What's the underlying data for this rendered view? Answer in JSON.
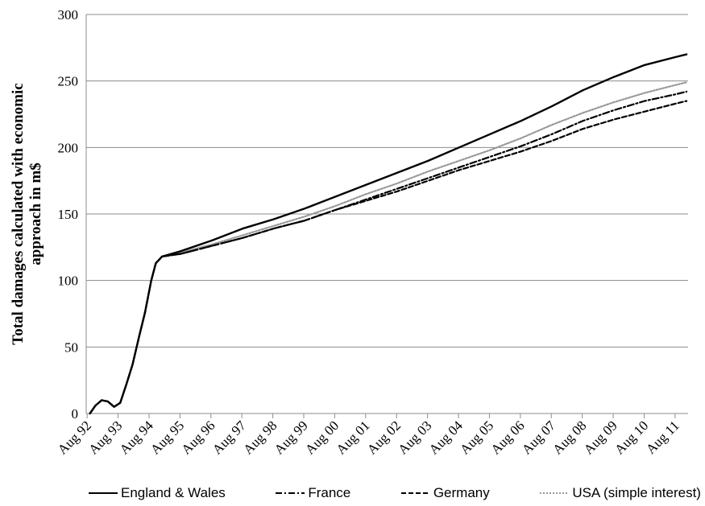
{
  "chart_data": {
    "type": "line",
    "title": "",
    "xlabel": "",
    "ylabel_lines": [
      "Total damages calculated with economic",
      "approach in m$"
    ],
    "x_ticks": [
      "Aug 92",
      "Aug 93",
      "Aug 94",
      "Aug 95",
      "Aug 96",
      "Aug 97",
      "Aug 98",
      "Aug 99",
      "Aug 00",
      "Aug 01",
      "Aug 02",
      "Aug 03",
      "Aug 04",
      "Aug 05",
      "Aug 06",
      "Aug 07",
      "Aug 08",
      "Aug 09",
      "Aug 10",
      "Aug 11"
    ],
    "xlim": [
      1992.55,
      2012.0
    ],
    "ylim": [
      0,
      300
    ],
    "y_ticks": [
      0,
      50,
      100,
      150,
      200,
      250,
      300
    ],
    "grid": "horizontal",
    "legend_position": "bottom",
    "series": [
      {
        "name": "England & Wales",
        "style": "solid",
        "color": "#000000",
        "x": [
          1992.67,
          1992.85,
          1993.05,
          1993.25,
          1993.45,
          1993.65,
          1993.85,
          1994.05,
          1994.25,
          1994.45,
          1994.65,
          1994.8,
          1995.0,
          1995.6,
          1996.6,
          1997.6,
          1998.6,
          1999.6,
          2000.6,
          2001.6,
          2002.6,
          2003.6,
          2004.6,
          2005.6,
          2006.6,
          2007.6,
          2008.6,
          2009.6,
          2010.6,
          2011.6,
          2011.95
        ],
        "y": [
          0,
          6,
          10,
          9,
          5,
          8,
          22,
          37,
          57,
          76,
          100,
          113,
          118,
          122,
          130,
          139,
          146,
          154,
          163,
          172,
          181,
          190,
          200,
          210,
          220,
          231,
          243,
          253,
          262,
          268,
          270
        ]
      },
      {
        "name": "France",
        "style": "dashdot",
        "color": "#000000",
        "x": [
          1992.67,
          1992.85,
          1993.05,
          1993.25,
          1993.45,
          1993.65,
          1993.85,
          1994.05,
          1994.25,
          1994.45,
          1994.65,
          1994.8,
          1995.0,
          1995.6,
          1996.6,
          1997.6,
          1998.6,
          1999.6,
          2000.6,
          2001.6,
          2002.6,
          2003.6,
          2004.6,
          2005.6,
          2006.6,
          2007.6,
          2008.6,
          2009.6,
          2010.6,
          2011.6,
          2011.95
        ],
        "y": [
          0,
          6,
          10,
          9,
          5,
          8,
          22,
          37,
          57,
          76,
          100,
          113,
          118,
          120,
          126,
          132,
          139,
          145,
          153,
          161,
          169,
          177,
          185,
          193,
          201,
          210,
          220,
          228,
          235,
          240,
          242
        ]
      },
      {
        "name": "Germany",
        "style": "dashed",
        "color": "#000000",
        "x": [
          1992.67,
          1992.85,
          1993.05,
          1993.25,
          1993.45,
          1993.65,
          1993.85,
          1994.05,
          1994.25,
          1994.45,
          1994.65,
          1994.8,
          1995.0,
          1995.6,
          1996.6,
          1997.6,
          1998.6,
          1999.6,
          2000.6,
          2001.6,
          2002.6,
          2003.6,
          2004.6,
          2005.6,
          2006.6,
          2007.6,
          2008.6,
          2009.6,
          2010.6,
          2011.6,
          2011.95
        ],
        "y": [
          0,
          6,
          10,
          9,
          5,
          8,
          22,
          37,
          57,
          76,
          100,
          113,
          118,
          120,
          126,
          132,
          139,
          145,
          153,
          160,
          167,
          175,
          183,
          190,
          197,
          205,
          214,
          221,
          227,
          233,
          235
        ]
      },
      {
        "name": "USA (simple interest)",
        "style": "dotted",
        "color": "#999999",
        "x": [
          1992.67,
          1992.85,
          1993.05,
          1993.25,
          1993.45,
          1993.65,
          1993.85,
          1994.05,
          1994.25,
          1994.45,
          1994.65,
          1994.8,
          1995.0,
          1995.6,
          1996.6,
          1997.6,
          1998.6,
          1999.6,
          2000.6,
          2001.6,
          2002.6,
          2003.6,
          2004.6,
          2005.6,
          2006.6,
          2007.6,
          2008.6,
          2009.6,
          2010.6,
          2011.6,
          2011.95
        ],
        "y": [
          0,
          6,
          10,
          9,
          5,
          8,
          22,
          37,
          57,
          76,
          100,
          113,
          118,
          121,
          127,
          134,
          141,
          148,
          156,
          165,
          173,
          182,
          190,
          198,
          207,
          217,
          226,
          234,
          241,
          247,
          249
        ]
      }
    ]
  }
}
